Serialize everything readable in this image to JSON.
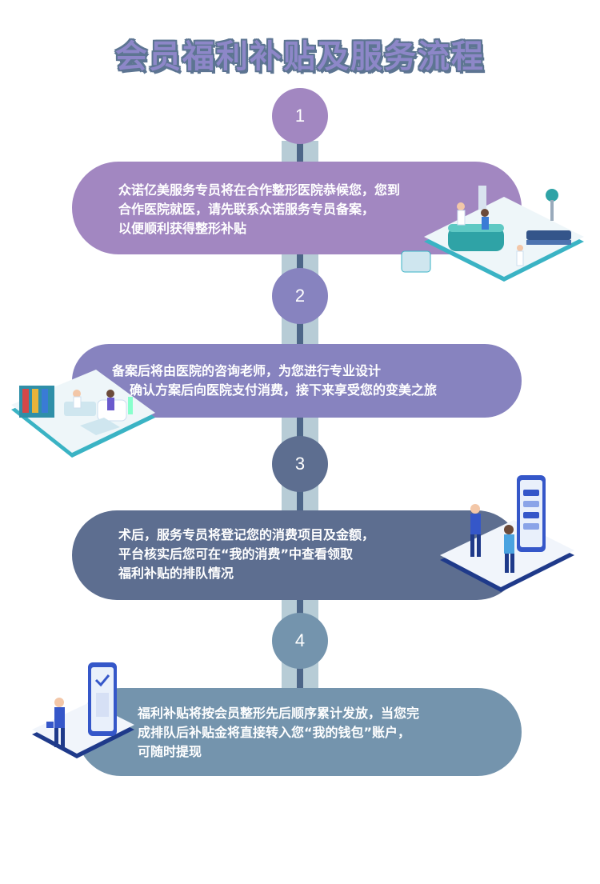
{
  "title": "会员福利补贴及服务流程",
  "colors": {
    "step1": "#a287c1",
    "step2": "#8783bf",
    "step3": "#5d6e90",
    "step4": "#7494ad",
    "rail": "#b7ccd6",
    "rail_center": "#4d6688"
  },
  "steps": [
    {
      "number": "1",
      "lines": [
        "众诺亿美服务专员将在合作整形医院恭候您，您到",
        "合作医院就医，请先联系众诺服务专员备案，",
        "以便顺利获得整形补贴"
      ],
      "illustration": "hospital-reception-illustration"
    },
    {
      "number": "2",
      "lines": [
        "备案后将由医院的咨询老师，为您进行专业设计",
        "确认方案后向医院支付消费，接下来享受您的变美之旅"
      ],
      "illustration": "consultation-room-illustration"
    },
    {
      "number": "3",
      "lines": [
        "术后，服务专员将登记您的消费项目及金额，",
        "平台核实后您可在“我的消费”中查看领取",
        "福利补贴的排队情况"
      ],
      "illustration": "phone-people-illustration"
    },
    {
      "number": "4",
      "lines": [
        "福利补贴将按会员整形先后顺序累计发放，当您完",
        "成排队后补贴金将直接转入您“我的钱包”账户，",
        "可随时提现"
      ],
      "illustration": "wallet-phone-illustration"
    }
  ]
}
